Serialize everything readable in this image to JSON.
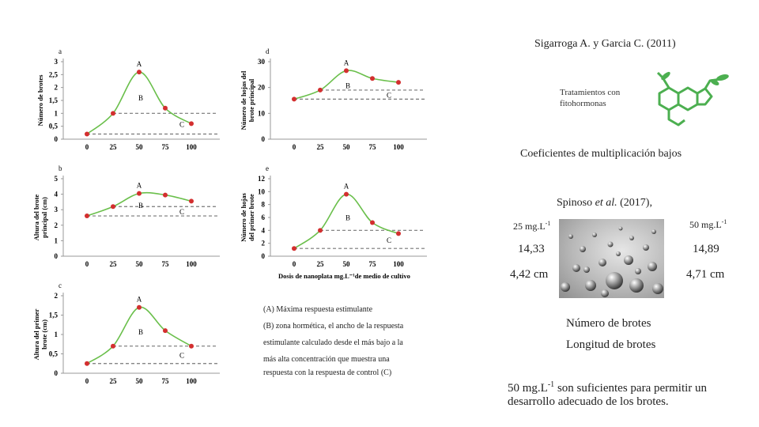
{
  "header": {
    "citation_1": "Sigarroga A. y Garcia C. (2011)"
  },
  "hormone": {
    "label_line1": "Tratamientos con",
    "label_line2": "fitohormonas",
    "color": "#4caf50"
  },
  "coef_text": "Coeficientes de multiplicación bajos",
  "citation_2": {
    "author": "Spinoso",
    "etal": "et al.",
    "year": "(2017),"
  },
  "concentrations": {
    "left": {
      "unit": "25 mg.L",
      "exp": "-1",
      "val1": "14,33",
      "val2": "4,42 cm"
    },
    "right": {
      "unit": "50 mg.L",
      "exp": "-1",
      "val1": "14,89",
      "val2": "4,71 cm"
    }
  },
  "metrics": {
    "m1": "Número de brotes",
    "m2": "Longitud de brotes"
  },
  "conclusion": {
    "prefix": "50 mg.L",
    "exp": "-1",
    "line1_rest": " son suficientes para permitir un",
    "line2": "desarrollo adecuado de los brotes."
  },
  "legend_text": {
    "l1": "(A) Máxima respuesta estimulante",
    "l2": "(B) zona hormética, el ancho de la respuesta",
    "l3": "estimulante calculado desde el más bajo a la",
    "l4": "más alta concentración que muestra una",
    "l5": "respuesta con la respuesta de control (C)"
  },
  "colors": {
    "line": "#6abf4b",
    "point": "#d32f2f",
    "dash": "#777777"
  },
  "chart_data": [
    {
      "panel": "a",
      "type": "line",
      "ylabel": [
        "Número de brotes"
      ],
      "categories": [
        "0",
        "25",
        "50",
        "75",
        "100"
      ],
      "values": [
        0.2,
        1.0,
        2.6,
        1.2,
        0.6
      ],
      "ylim": [
        0,
        3
      ],
      "yticks": [
        "0",
        "0,5",
        "1",
        "1,5",
        "2",
        "2,5",
        "3"
      ],
      "labels": {
        "A": "A",
        "B": "B",
        "C": "C"
      },
      "B_level": 1.0,
      "C_level": 0.2
    },
    {
      "panel": "b",
      "type": "line",
      "ylabel": [
        "Altura del brote",
        "principal (cm)"
      ],
      "categories": [
        "0",
        "25",
        "50",
        "75",
        "100"
      ],
      "values": [
        2.6,
        3.2,
        4.05,
        3.95,
        3.55
      ],
      "ylim": [
        0,
        5
      ],
      "yticks": [
        "0",
        "1",
        "2",
        "3",
        "4",
        "5"
      ],
      "labels": {
        "A": "A",
        "B": "B",
        "C": "C"
      },
      "B_level": 3.2,
      "C_level": 2.6
    },
    {
      "panel": "c",
      "type": "line",
      "ylabel": [
        "Altura del primer",
        "brote (cm)"
      ],
      "categories": [
        "0",
        "25",
        "50",
        "75",
        "100"
      ],
      "values": [
        0.25,
        0.7,
        1.7,
        1.1,
        0.7
      ],
      "ylim": [
        0,
        2
      ],
      "yticks": [
        "0",
        "0,5",
        "1",
        "1,5",
        "2"
      ],
      "labels": {
        "A": "A",
        "B": "B",
        "C": "C"
      },
      "B_level": 0.7,
      "C_level": 0.25
    },
    {
      "panel": "d",
      "type": "line",
      "ylabel": [
        "Número de hojas del",
        "brote principal"
      ],
      "categories": [
        "0",
        "25",
        "50",
        "75",
        "100"
      ],
      "values": [
        15.5,
        19,
        26.5,
        23.5,
        22
      ],
      "ylim": [
        0,
        30
      ],
      "yticks": [
        "0",
        "10",
        "20",
        "30"
      ],
      "labels": {
        "A": "A",
        "B": "B",
        "C": "C"
      },
      "B_level": 19,
      "C_level": 15.5
    },
    {
      "panel": "e",
      "type": "line",
      "ylabel": [
        "Número de hojas",
        "del primer brote"
      ],
      "categories": [
        "0",
        "25",
        "50",
        "75",
        "100"
      ],
      "values": [
        1.2,
        4,
        9.6,
        5.2,
        3.5
      ],
      "ylim": [
        0,
        12
      ],
      "yticks": [
        "0",
        "2",
        "4",
        "6",
        "8",
        "10",
        "12"
      ],
      "labels": {
        "A": "A",
        "B": "B",
        "C": "C"
      },
      "B_level": 4,
      "C_level": 1.2,
      "xlabel": "Dosis de nanoplata mg.L⁻¹de medio de cultivo"
    }
  ]
}
